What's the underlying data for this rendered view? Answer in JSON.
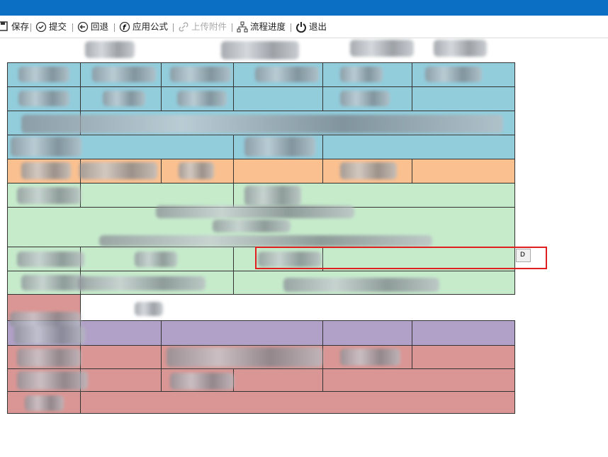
{
  "toolbar": {
    "items": [
      {
        "label": "保存",
        "enabled": true
      },
      {
        "label": "提交",
        "enabled": true
      },
      {
        "label": "回退",
        "enabled": true
      },
      {
        "label": "应用公式",
        "enabled": true
      },
      {
        "label": "上传附件",
        "enabled": false
      },
      {
        "label": "流程进度",
        "enabled": true
      },
      {
        "label": "退出",
        "enabled": true
      }
    ]
  },
  "form": {
    "side_button": "D"
  }
}
